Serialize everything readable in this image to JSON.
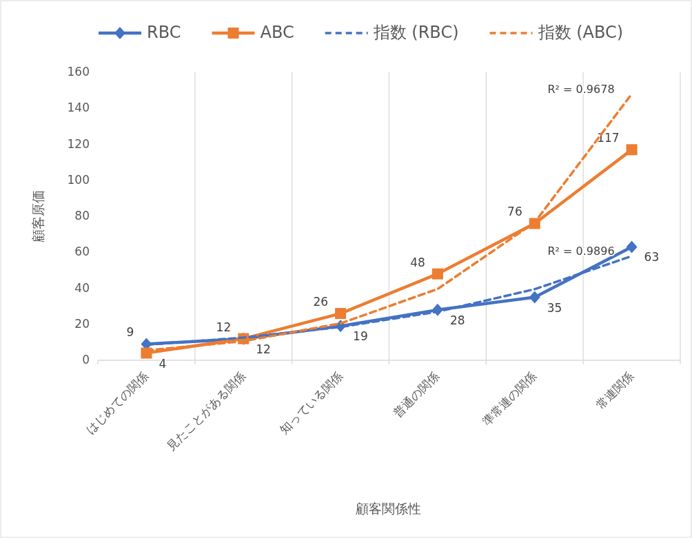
{
  "chart_data": {
    "type": "line",
    "xlabel": "顧客関係性",
    "ylabel": "顧客原価",
    "categories": [
      "はじめての関係",
      "見たことがある関係",
      "知っている関係",
      "普通の関係",
      "準常連の関係",
      "常連関係"
    ],
    "ylim": [
      0,
      160
    ],
    "yticks": [
      0,
      20,
      40,
      60,
      80,
      100,
      120,
      140,
      160
    ],
    "grid": "x",
    "legend": "top",
    "series": [
      {
        "name": "RBC",
        "color": "#4472c4",
        "marker": "diamond",
        "line_style": "solid",
        "values": [
          9,
          12,
          19,
          28,
          35,
          63
        ],
        "value_labels": [
          "9",
          "12",
          "19",
          "28",
          "35",
          "63"
        ]
      },
      {
        "name": "ABC",
        "color": "#ed7d31",
        "marker": "square",
        "line_style": "solid",
        "values": [
          4,
          12,
          26,
          48,
          76,
          117
        ],
        "value_labels": [
          "4",
          "12",
          "26",
          "48",
          "76",
          "117"
        ]
      },
      {
        "name": "指数 (RBC)",
        "color": "#4472c4",
        "marker": "none",
        "line_style": "dashed",
        "values": [
          8.6,
          12.6,
          18.5,
          27.0,
          39.5,
          57.9
        ]
      },
      {
        "name": "指数 (ABC)",
        "color": "#ed7d31",
        "marker": "none",
        "line_style": "dashed",
        "values": [
          5.5,
          10.6,
          20.5,
          39.6,
          76.6,
          148
        ]
      }
    ],
    "annotations": [
      {
        "text": "R² = 0.9678",
        "x": "常連関係",
        "y": 148
      },
      {
        "text": "R² = 0.9896",
        "x": "常連関係",
        "y": 57.9
      }
    ]
  }
}
